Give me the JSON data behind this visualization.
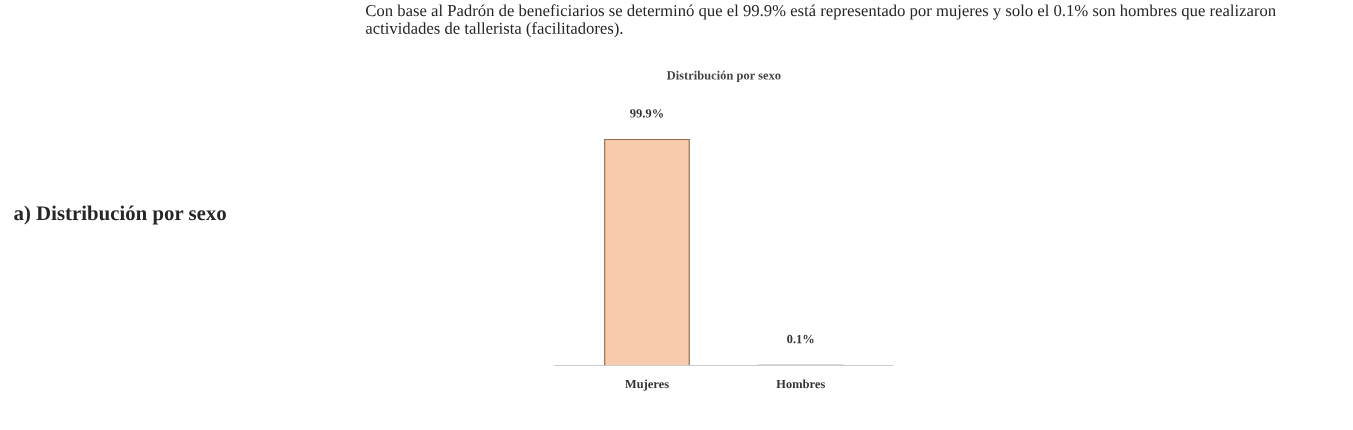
{
  "chart_data": {
    "type": "bar",
    "title": "Distribución por sexo",
    "categories": [
      "Mujeres",
      "Hombres"
    ],
    "values": [
      99.9,
      0.1
    ],
    "colors": [
      "#f8cbad",
      "#c89600"
    ],
    "value_labels": [
      "99.9%",
      "0.1%"
    ],
    "annotations": [
      "a) Distribución por sexo",
      "Con base al Padrón de beneficiarios se determinó que el 99.9% está representado por mujeres y solo el 0.1% son hombres que realizaron actividades de tallerista (facilitadores)."
    ]
  }
}
